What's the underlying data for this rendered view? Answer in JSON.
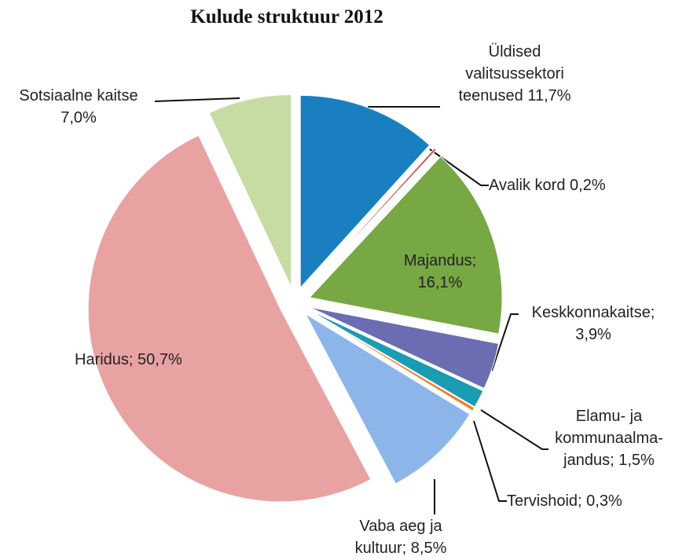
{
  "chart_data": {
    "type": "pie",
    "title": "Kulude struktuur 2012",
    "categories": [
      "Üldised valitsussektori teenused",
      "Avalik kord",
      "Majandus;",
      "Keskkonnakaitse;",
      "Elamu- ja kommunaalma-jandus;",
      "Tervishoid;",
      "Vaba aeg ja kultuur;",
      "Haridus;",
      "Sotsiaalne kaitse"
    ],
    "values": [
      11.7,
      0.2,
      16.1,
      3.9,
      1.5,
      0.3,
      8.5,
      50.7,
      7.0
    ],
    "value_labels": [
      "11,7%",
      "0,2%",
      "16,1%",
      "3,9%",
      "1,5%",
      "0,3%",
      "8,5%",
      "50,7%",
      "7,0%"
    ],
    "colors": [
      "#1a7fc1",
      "#c0504d",
      "#77a844",
      "#6a6db2",
      "#1a9cb3",
      "#f07d28",
      "#8cb6ea",
      "#e9a2a2",
      "#c6dca2"
    ]
  }
}
